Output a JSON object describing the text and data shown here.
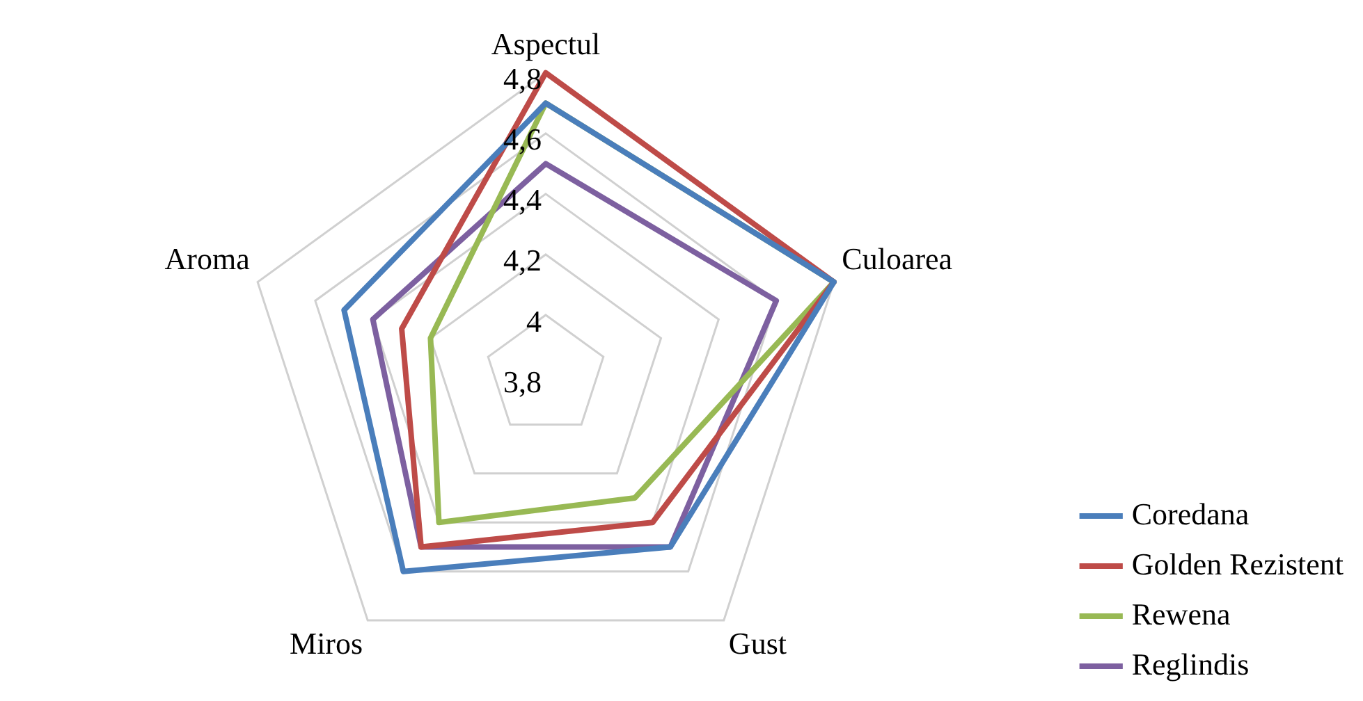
{
  "chart_data": {
    "type": "radar",
    "categories": [
      "Aspectul",
      "Culoarea",
      "Gust",
      "Miros",
      "Aroma"
    ],
    "series": [
      {
        "name": "Coredana",
        "color": "#4a7ebb",
        "values": [
          4.7,
          4.8,
          4.5,
          4.6,
          4.5
        ]
      },
      {
        "name": "Golden Rezistent",
        "color": "#be4b48",
        "values": [
          4.8,
          4.8,
          4.4,
          4.5,
          4.3
        ]
      },
      {
        "name": "Rewena",
        "color": "#98b954",
        "values": [
          4.7,
          4.8,
          4.3,
          4.4,
          4.2
        ]
      },
      {
        "name": "Reglindis",
        "color": "#7d60a0",
        "values": [
          4.5,
          4.6,
          4.5,
          4.5,
          4.4
        ]
      }
    ],
    "ylim": [
      3.8,
      4.8
    ],
    "yticks": [
      {
        "value": 3.8,
        "label": "3,8"
      },
      {
        "value": 4,
        "label": "4"
      },
      {
        "value": 4.2,
        "label": "4,2"
      },
      {
        "value": 4.4,
        "label": "4,4"
      },
      {
        "value": 4.6,
        "label": "4,6"
      },
      {
        "value": 4.8,
        "label": "4,8"
      }
    ],
    "grid": true,
    "legend": "bottom right",
    "marker": "none",
    "line_style": "solid"
  }
}
